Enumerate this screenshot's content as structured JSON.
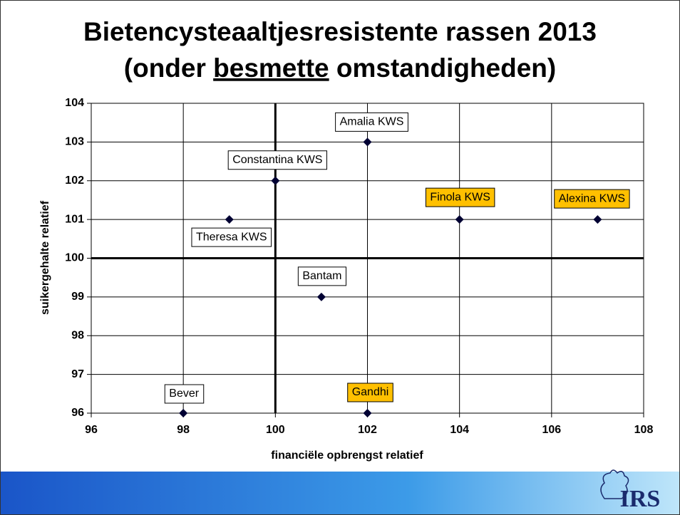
{
  "chart_data": {
    "type": "scatter",
    "title": "Bietencysteaaltjesresistente rassen 2013",
    "title_line2": [
      "(onder",
      "besmette",
      "omstandigheden)"
    ],
    "x_label": "financiële opbrengst relatief",
    "y_label": "suikergehalte relatief",
    "labels": [
      "Amalia KWS",
      "Constantina KWS",
      "Theresa KWS",
      "Finola KWS",
      "Alexina KWS",
      "Bantam",
      "Bever",
      "Gandhi"
    ],
    "x": [
      102,
      100,
      99,
      104,
      107,
      101,
      98,
      102
    ],
    "values": [
      103,
      102,
      101,
      101,
      101,
      99,
      96,
      96
    ],
    "label_colors": [
      "#ffffff",
      "#ffffff",
      "#ffffff",
      "#ffc000",
      "#ffc000",
      "#ffffff",
      "#ffffff",
      "#ffc000"
    ],
    "color": "#000033",
    "xlim": [
      96,
      108
    ],
    "xticks": [
      96,
      98,
      100,
      102,
      104,
      106,
      108
    ],
    "ylim": [
      96,
      104
    ],
    "yticks": [
      96,
      97,
      98,
      99,
      100,
      101,
      102,
      103,
      104
    ],
    "reference_lines": {
      "x": 100,
      "y": 100
    },
    "grid": true
  },
  "footer": {
    "logo": "IRS"
  }
}
